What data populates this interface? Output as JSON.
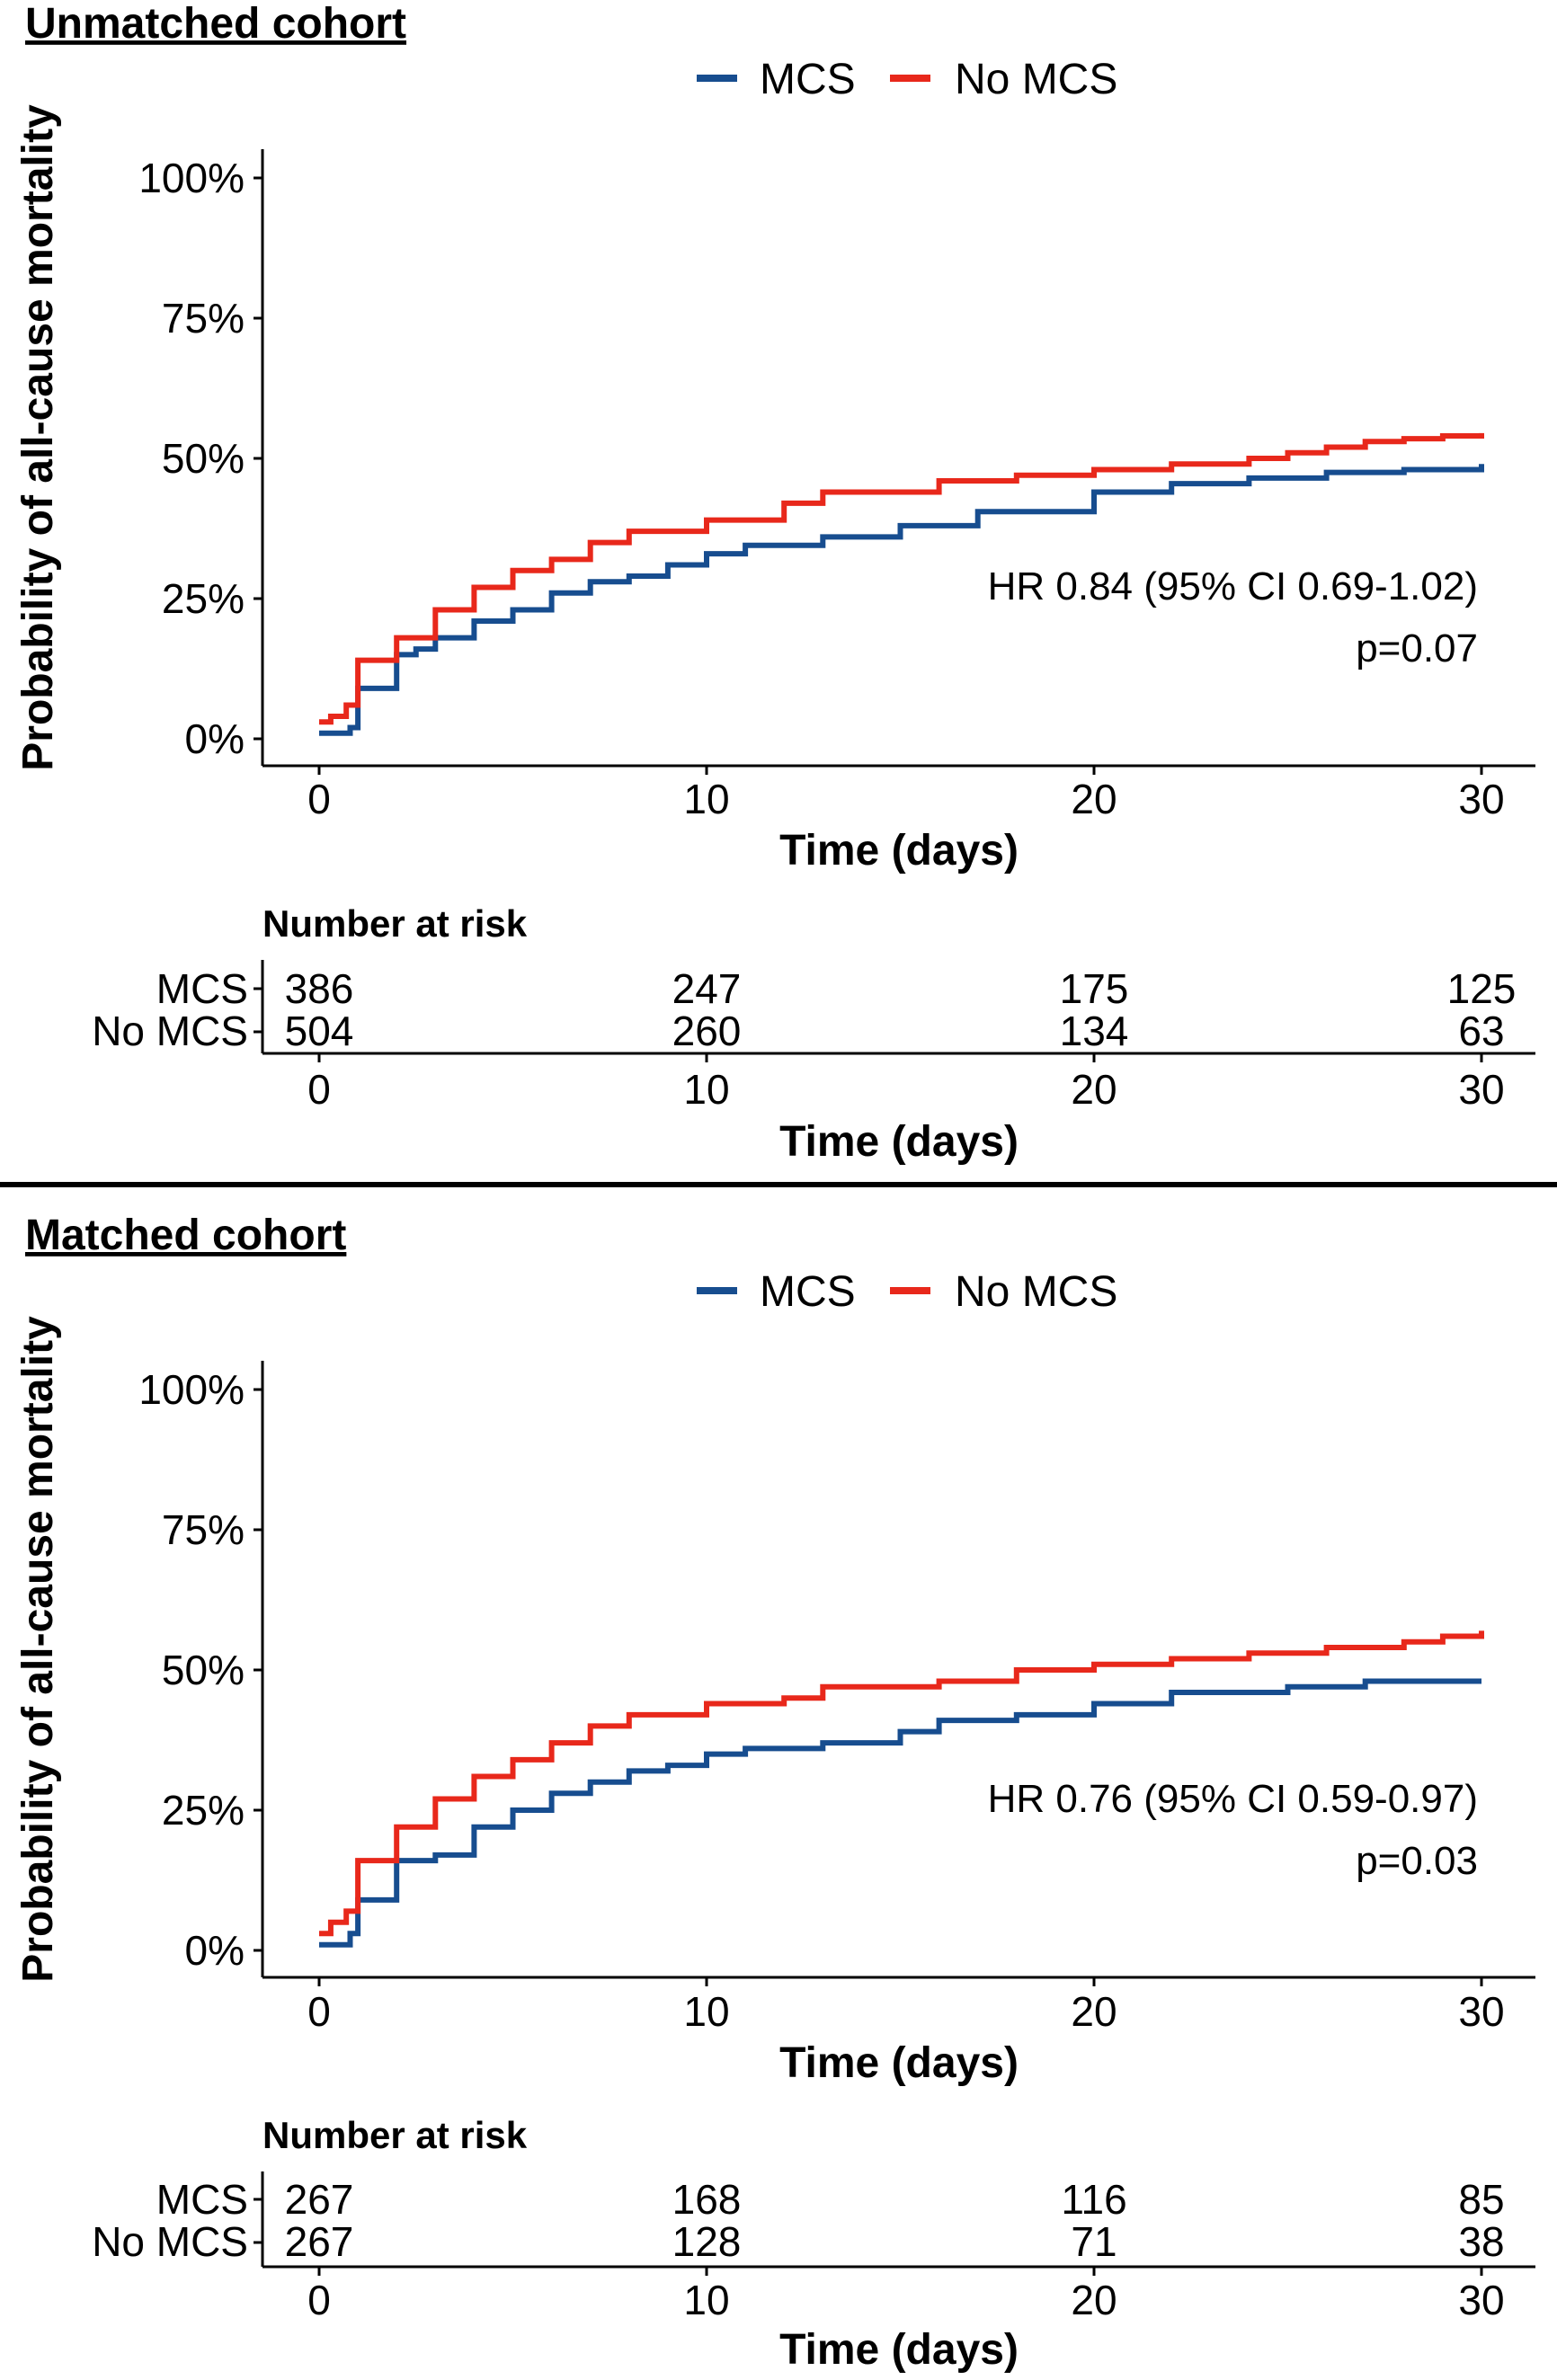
{
  "colors": {
    "MCS": "#174d8f",
    "No MCS": "#e8281b"
  },
  "chart_data": [
    {
      "type": "line",
      "step": true,
      "title": "Unmatched cohort",
      "xlabel": "Time (days)",
      "ylabel": "Probability of all-cause mortality",
      "xlim": [
        0,
        30
      ],
      "ylim": [
        0,
        1
      ],
      "xticks": [
        0,
        10,
        20,
        30
      ],
      "yticks": [
        0,
        0.25,
        0.5,
        0.75,
        1.0
      ],
      "ytick_labels": [
        "0%",
        "25%",
        "50%",
        "75%",
        "100%"
      ],
      "legend_position": "top",
      "series": [
        {
          "name": "MCS",
          "x": [
            0,
            0.5,
            0.8,
            1.0,
            2.0,
            2.5,
            3.0,
            4.0,
            5.0,
            6.0,
            7.0,
            8.0,
            9.0,
            10.0,
            11.0,
            13.0,
            15.0,
            17.0,
            20.0,
            22.0,
            24.0,
            26.0,
            28.0,
            30.0
          ],
          "y": [
            0.01,
            0.01,
            0.02,
            0.09,
            0.15,
            0.16,
            0.18,
            0.21,
            0.23,
            0.26,
            0.28,
            0.29,
            0.31,
            0.33,
            0.345,
            0.36,
            0.38,
            0.405,
            0.44,
            0.455,
            0.465,
            0.475,
            0.48,
            0.49
          ]
        },
        {
          "name": "No MCS",
          "x": [
            0,
            0.3,
            0.7,
            1.0,
            2.0,
            3.0,
            4.0,
            5.0,
            6.0,
            7.0,
            8.0,
            10.0,
            12.0,
            13.0,
            16.0,
            18.0,
            20.0,
            22.0,
            24.0,
            25.0,
            26.0,
            27.0,
            28.0,
            29.0,
            30.0
          ],
          "y": [
            0.03,
            0.04,
            0.06,
            0.14,
            0.18,
            0.23,
            0.27,
            0.3,
            0.32,
            0.35,
            0.37,
            0.39,
            0.42,
            0.44,
            0.46,
            0.47,
            0.48,
            0.49,
            0.5,
            0.51,
            0.52,
            0.53,
            0.535,
            0.54,
            0.545
          ]
        }
      ],
      "annotations": [
        "HR 0.84 (95% CI 0.69-1.02)",
        "p=0.07"
      ],
      "risk_table": {
        "title": "Number at risk",
        "xlabel": "Time (days)",
        "times": [
          0,
          10,
          20,
          30
        ],
        "rows": [
          {
            "group": "MCS",
            "values": [
              386,
              247,
              175,
              125
            ]
          },
          {
            "group": "No MCS",
            "values": [
              504,
              260,
              134,
              63
            ]
          }
        ]
      }
    },
    {
      "type": "line",
      "step": true,
      "title": "Matched cohort",
      "xlabel": "Time (days)",
      "ylabel": "Probability of all-cause mortality",
      "xlim": [
        0,
        30
      ],
      "ylim": [
        0,
        1
      ],
      "xticks": [
        0,
        10,
        20,
        30
      ],
      "yticks": [
        0,
        0.25,
        0.5,
        0.75,
        1.0
      ],
      "ytick_labels": [
        "0%",
        "25%",
        "50%",
        "75%",
        "100%"
      ],
      "legend_position": "top",
      "series": [
        {
          "name": "MCS",
          "x": [
            0,
            0.5,
            0.8,
            1.0,
            2.0,
            3.0,
            4.0,
            5.0,
            6.0,
            7.0,
            8.0,
            9.0,
            10.0,
            11.0,
            13.0,
            15.0,
            16.0,
            18.0,
            20.0,
            22.0,
            25.0,
            27.0,
            30.0
          ],
          "y": [
            0.01,
            0.01,
            0.03,
            0.09,
            0.16,
            0.17,
            0.22,
            0.25,
            0.28,
            0.3,
            0.32,
            0.33,
            0.35,
            0.36,
            0.37,
            0.39,
            0.41,
            0.42,
            0.44,
            0.46,
            0.47,
            0.48,
            0.48
          ]
        },
        {
          "name": "No MCS",
          "x": [
            0,
            0.3,
            0.7,
            1.0,
            2.0,
            3.0,
            4.0,
            5.0,
            6.0,
            7.0,
            8.0,
            10.0,
            12.0,
            13.0,
            16.0,
            18.0,
            20.0,
            22.0,
            24.0,
            26.0,
            28.0,
            29.0,
            30.0
          ],
          "y": [
            0.03,
            0.05,
            0.07,
            0.16,
            0.22,
            0.27,
            0.31,
            0.34,
            0.37,
            0.4,
            0.42,
            0.44,
            0.45,
            0.47,
            0.48,
            0.5,
            0.51,
            0.52,
            0.53,
            0.54,
            0.55,
            0.56,
            0.57
          ]
        }
      ],
      "annotations": [
        "HR 0.76 (95% CI 0.59-0.97)",
        "p=0.03"
      ],
      "risk_table": {
        "title": "Number at risk",
        "xlabel": "Time (days)",
        "times": [
          0,
          10,
          20,
          30
        ],
        "rows": [
          {
            "group": "MCS",
            "values": [
              267,
              168,
              116,
              85
            ]
          },
          {
            "group": "No MCS",
            "values": [
              267,
              128,
              71,
              38
            ]
          }
        ]
      }
    }
  ]
}
